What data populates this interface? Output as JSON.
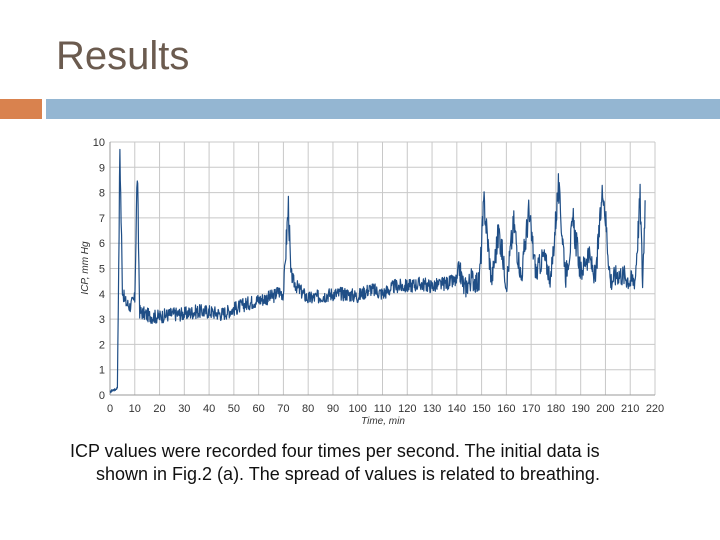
{
  "slide": {
    "title": "Results",
    "caption_line1": "ICP values were recorded four times per second. The initial data is",
    "caption_line2": "shown in Fig.2 (a). The spread of values is related to breathing."
  },
  "colors": {
    "title": "#6b5b4f",
    "accent_orange": "#d9824e",
    "accent_blue": "#94b6d2",
    "series": "#1f4e86",
    "grid": "#c8c8c8"
  },
  "chart_data": {
    "type": "line",
    "xlabel": "Time, min",
    "ylabel": "ICP, mm Hg",
    "xlim": [
      0,
      220
    ],
    "ylim": [
      0,
      10
    ],
    "xticks": [
      0,
      10,
      20,
      30,
      40,
      50,
      60,
      70,
      80,
      90,
      100,
      110,
      120,
      130,
      140,
      150,
      160,
      170,
      180,
      190,
      200,
      210,
      220
    ],
    "yticks": [
      0,
      1,
      2,
      3,
      4,
      5,
      6,
      7,
      8,
      9,
      10
    ],
    "grid": true,
    "legend": "none",
    "series": [
      {
        "x": [
          0,
          1,
          2,
          3,
          4,
          5,
          6,
          8,
          10,
          11,
          12,
          14,
          17,
          20,
          25,
          30,
          35,
          40,
          45,
          50,
          55,
          58,
          62,
          66,
          68,
          70,
          72,
          73,
          74,
          76,
          80,
          85,
          90,
          95,
          100,
          105,
          110,
          115,
          120,
          125,
          130,
          135,
          140,
          141,
          143,
          146,
          149,
          151,
          154,
          157,
          160,
          163,
          166,
          169,
          172,
          175,
          178,
          181,
          184,
          187,
          190,
          193,
          196,
          199,
          202,
          205,
          208,
          210,
          212,
          214,
          215,
          216
        ],
        "values": [
          0.1,
          0.2,
          0.2,
          0.3,
          9.8,
          4.2,
          3.7,
          3.5,
          3.8,
          8.8,
          3.3,
          3.2,
          3.1,
          3.1,
          3.2,
          3.2,
          3.3,
          3.3,
          3.2,
          3.4,
          3.6,
          3.7,
          3.8,
          3.9,
          4.1,
          4.0,
          7.5,
          4.8,
          4.5,
          4.2,
          3.8,
          3.9,
          4.0,
          4.0,
          3.9,
          4.2,
          4.0,
          4.3,
          4.3,
          4.4,
          4.3,
          4.4,
          4.5,
          5.0,
          4.2,
          4.6,
          4.4,
          7.6,
          4.5,
          6.5,
          4.4,
          6.8,
          4.6,
          7.2,
          4.8,
          5.5,
          4.6,
          8.2,
          4.7,
          6.8,
          4.8,
          5.6,
          4.6,
          8.3,
          4.5,
          4.8,
          4.7,
          4.5,
          4.6,
          7.8,
          4.4,
          7.7
        ]
      }
    ]
  }
}
